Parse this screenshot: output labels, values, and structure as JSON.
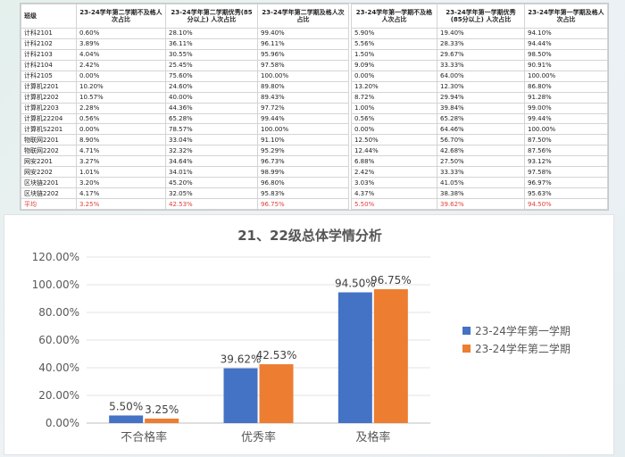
{
  "table": {
    "headers": [
      "班级",
      "23-24学年第二学期不及格人次占比",
      "23-24学年第二学期优秀(85分以上) 人次占比",
      "23-24学年第二学期及格人次占比",
      "23-24学年第一学期不及格人次占比",
      "23-24学年第一学期优秀(85分以上) 人次占比",
      "23-24学年第一学期及格人次占比"
    ],
    "rows": [
      [
        "计科2101",
        "0.60%",
        "28.10%",
        "99.40%",
        "5.90%",
        "19.40%",
        "94.10%"
      ],
      [
        "计科2102",
        "3.89%",
        "36.11%",
        "96.11%",
        "5.56%",
        "28.33%",
        "94.44%"
      ],
      [
        "计科2103",
        "4.04%",
        "30.55%",
        "95.96%",
        "1.50%",
        "29.67%",
        "98.50%"
      ],
      [
        "计科2104",
        "2.42%",
        "25.45%",
        "97.58%",
        "9.09%",
        "33.33%",
        "90.91%"
      ],
      [
        "计科2105",
        "0.00%",
        "75.60%",
        "100.00%",
        "0.00%",
        "64.00%",
        "100.00%"
      ],
      [
        "计算机2201",
        "10.20%",
        "24.60%",
        "89.80%",
        "13.20%",
        "12.30%",
        "86.80%"
      ],
      [
        "计算机2202",
        "10.57%",
        "40.00%",
        "89.43%",
        "8.72%",
        "29.94%",
        "91.28%"
      ],
      [
        "计算机2203",
        "2.28%",
        "44.36%",
        "97.72%",
        "1.00%",
        "39.84%",
        "99.00%"
      ],
      [
        "计算机22204",
        "0.56%",
        "65.28%",
        "99.44%",
        "0.56%",
        "65.28%",
        "99.44%"
      ],
      [
        "计算机S2201",
        "0.00%",
        "78.57%",
        "100.00%",
        "0.00%",
        "64.46%",
        "100.00%"
      ],
      [
        "物联网2201",
        "8.90%",
        "33.04%",
        "91.10%",
        "12.50%",
        "56.70%",
        "87.50%"
      ],
      [
        "物联网2202",
        "4.71%",
        "32.32%",
        "95.29%",
        "12.44%",
        "42.68%",
        "87.56%"
      ],
      [
        "网安2201",
        "3.27%",
        "34.64%",
        "96.73%",
        "6.88%",
        "27.50%",
        "93.12%"
      ],
      [
        "网安2202",
        "1.01%",
        "34.01%",
        "98.99%",
        "2.42%",
        "33.33%",
        "97.58%"
      ],
      [
        "区块链2201",
        "3.20%",
        "45.20%",
        "96.80%",
        "3.03%",
        "41.05%",
        "96.97%"
      ],
      [
        "区块链2202",
        "4.17%",
        "32.05%",
        "95.83%",
        "4.37%",
        "38.38%",
        "95.63%"
      ]
    ],
    "avg_row": [
      "平均",
      "3.25%",
      "42.53%",
      "96.75%",
      "5.50%",
      "39.62%",
      "94.50%"
    ]
  },
  "chart_data": {
    "type": "bar",
    "title": "21、22级总体学情分析",
    "categories": [
      "不合格率",
      "优秀率",
      "及格率"
    ],
    "series": [
      {
        "name": "23-24学年第一学期",
        "values": [
          5.5,
          39.62,
          94.5
        ],
        "labels": [
          "5.50%",
          "39.62%",
          "94.50%"
        ],
        "color": "#4472c4"
      },
      {
        "name": "23-24学年第二学期",
        "values": [
          3.25,
          42.53,
          96.75
        ],
        "labels": [
          "3.25%",
          "42.53%",
          "96.75%"
        ],
        "color": "#ed7d31"
      }
    ],
    "yticks": [
      "0.00%",
      "20.00%",
      "40.00%",
      "60.00%",
      "80.00%",
      "100.00%",
      "120.00%"
    ],
    "ylim": [
      0,
      120
    ],
    "grid": true,
    "legend": "right"
  }
}
